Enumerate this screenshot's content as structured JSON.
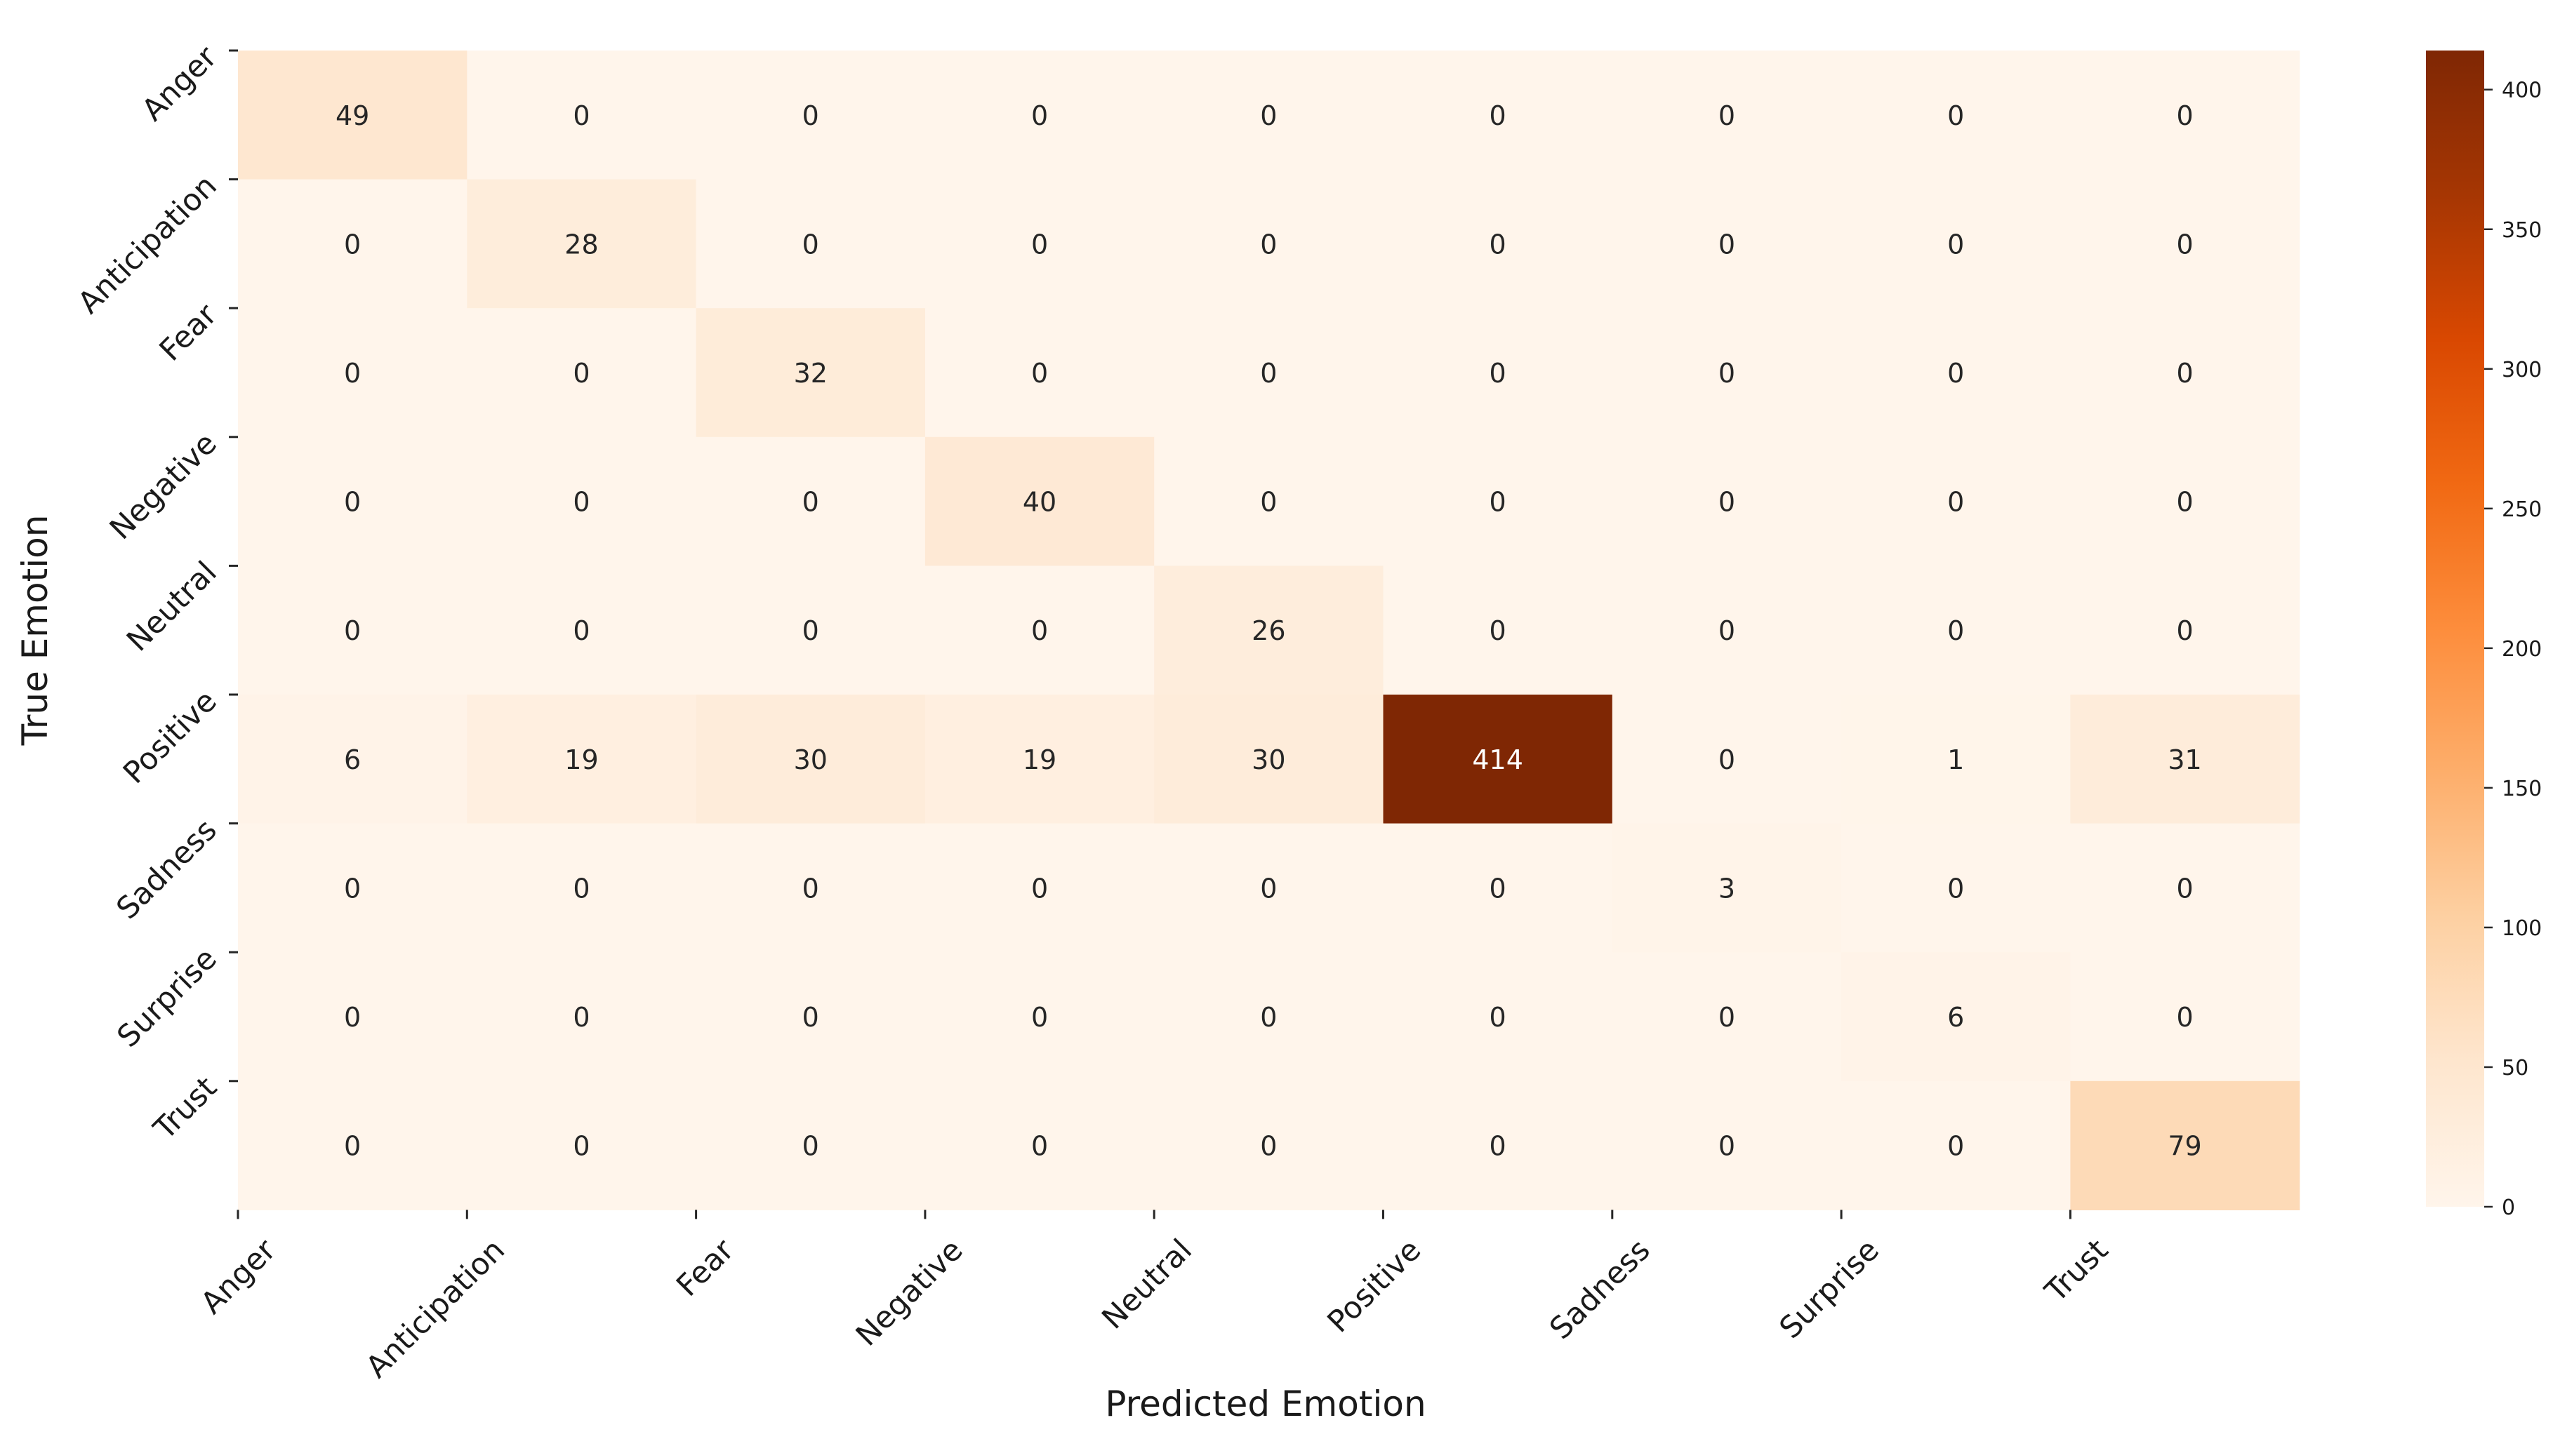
{
  "chart_data": {
    "type": "heatmap",
    "title": "",
    "xlabel": "Predicted Emotion",
    "ylabel": "True Emotion",
    "x_categories": [
      "Anger",
      "Anticipation",
      "Fear",
      "Negative",
      "Neutral",
      "Positive",
      "Sadness",
      "Surprise",
      "Trust"
    ],
    "y_categories": [
      "Anger",
      "Anticipation",
      "Fear",
      "Negative",
      "Neutral",
      "Positive",
      "Sadness",
      "Surprise",
      "Trust"
    ],
    "values": [
      [
        49,
        0,
        0,
        0,
        0,
        0,
        0,
        0,
        0
      ],
      [
        0,
        28,
        0,
        0,
        0,
        0,
        0,
        0,
        0
      ],
      [
        0,
        0,
        32,
        0,
        0,
        0,
        0,
        0,
        0
      ],
      [
        0,
        0,
        0,
        40,
        0,
        0,
        0,
        0,
        0
      ],
      [
        0,
        0,
        0,
        0,
        26,
        0,
        0,
        0,
        0
      ],
      [
        6,
        19,
        30,
        19,
        30,
        414,
        0,
        1,
        31
      ],
      [
        0,
        0,
        0,
        0,
        0,
        0,
        3,
        0,
        0
      ],
      [
        0,
        0,
        0,
        0,
        0,
        0,
        0,
        6,
        0
      ],
      [
        0,
        0,
        0,
        0,
        0,
        0,
        0,
        0,
        79
      ]
    ],
    "colormap": "Oranges",
    "color_range": [
      0,
      414
    ],
    "colorbar_ticks": [
      0,
      50,
      100,
      150,
      200,
      250,
      300,
      350,
      400
    ],
    "annotation_threshold": 207,
    "colors": {
      "cmap_stops": [
        "#fff5eb",
        "#fee6ce",
        "#fdd0a2",
        "#fdae6b",
        "#fd8d3c",
        "#f16913",
        "#d94801",
        "#a63603",
        "#7f2704"
      ],
      "text_dark": "#262626",
      "text_light": "#ffffff",
      "tick_color": "#262626",
      "label_color": "#1a1a1a"
    }
  }
}
